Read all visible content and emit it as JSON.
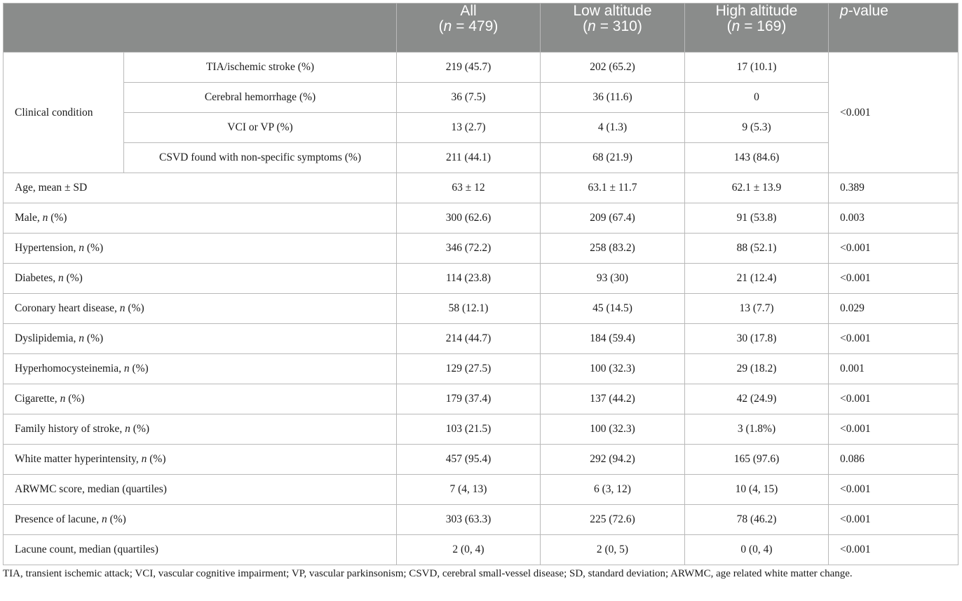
{
  "header": {
    "col1": "",
    "all": {
      "name": "All",
      "n": "(n = 479)"
    },
    "low": {
      "name": "Low altitude",
      "n": "(n = 310)"
    },
    "high": {
      "name": "High altitude",
      "n": "(n = 169)"
    },
    "p": "p-value"
  },
  "clinical": {
    "label": "Clinical condition",
    "p": "<0.001",
    "rows": [
      {
        "label": "TIA/ischemic stroke (%)",
        "all": "219 (45.7)",
        "low": "202 (65.2)",
        "high": "17 (10.1)"
      },
      {
        "label": "Cerebral hemorrhage (%)",
        "all": "36 (7.5)",
        "low": "36 (11.6)",
        "high": "0"
      },
      {
        "label": "VCI or VP (%)",
        "all": "13 (2.7)",
        "low": "4 (1.3)",
        "high": "9 (5.3)"
      },
      {
        "label": "CSVD found with non-specific symptoms (%)",
        "all": "211 (44.1)",
        "low": "68 (21.9)",
        "high": "143 (84.6)"
      }
    ]
  },
  "rows": [
    {
      "label": "Age, mean ± SD",
      "all": "63 ± 12",
      "low": "63.1 ± 11.7",
      "high": "62.1 ± 13.9",
      "p": "0.389"
    },
    {
      "label": "Male, n (%)",
      "all": "300 (62.6)",
      "low": "209 (67.4)",
      "high": "91 (53.8)",
      "p": "0.003"
    },
    {
      "label": "Hypertension, n (%)",
      "all": "346 (72.2)",
      "low": "258 (83.2)",
      "high": "88 (52.1)",
      "p": "<0.001"
    },
    {
      "label": "Diabetes, n (%)",
      "all": "114 (23.8)",
      "low": "93 (30)",
      "high": "21 (12.4)",
      "p": "<0.001"
    },
    {
      "label": "Coronary heart disease, n (%)",
      "all": "58 (12.1)",
      "low": "45 (14.5)",
      "high": "13 (7.7)",
      "p": "0.029"
    },
    {
      "label": "Dyslipidemia, n (%)",
      "all": "214 (44.7)",
      "low": "184 (59.4)",
      "high": "30 (17.8)",
      "p": "<0.001"
    },
    {
      "label": "Hyperhomocysteinemia, n (%)",
      "all": "129 (27.5)",
      "low": "100 (32.3)",
      "high": "29 (18.2)",
      "p": "0.001"
    },
    {
      "label": "Cigarette, n (%)",
      "all": "179 (37.4)",
      "low": "137 (44.2)",
      "high": "42 (24.9)",
      "p": "<0.001"
    },
    {
      "label": "Family history of stroke, n (%)",
      "all": "103 (21.5)",
      "low": "100 (32.3)",
      "high": "3 (1.8%)",
      "p": "<0.001"
    },
    {
      "label": "White matter hyperintensity, n (%)",
      "all": "457 (95.4)",
      "low": "292 (94.2)",
      "high": "165 (97.6)",
      "p": "0.086"
    },
    {
      "label": "ARWMC score, median (quartiles)",
      "all": "7 (4, 13)",
      "low": "6 (3, 12)",
      "high": "10 (4, 15)",
      "p": "<0.001"
    },
    {
      "label": "Presence of lacune, n (%)",
      "all": "303 (63.3)",
      "low": "225 (72.6)",
      "high": "78 (46.2)",
      "p": "<0.001"
    },
    {
      "label": "Lacune count, median (quartiles)",
      "all": "2 (0, 4)",
      "low": "2 (0, 5)",
      "high": "0 (0, 4)",
      "p": "<0.001"
    }
  ],
  "footnote": "TIA, transient ischemic attack; VCI, vascular cognitive impairment; VP, vascular parkinsonism; CSVD, cerebral small-vessel disease; SD, standard deviation; ARWMC, age related white matter change."
}
